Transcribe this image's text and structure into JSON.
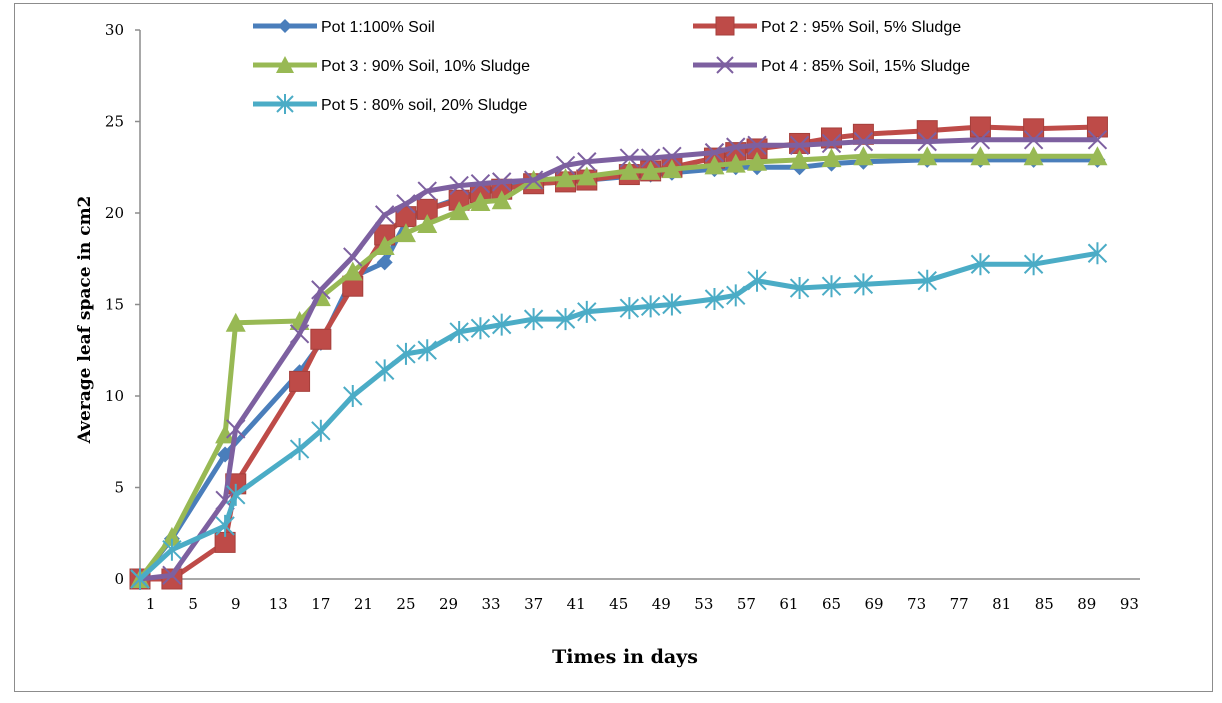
{
  "chart_data": {
    "type": "line",
    "xlabel": "Times in days",
    "ylabel": "Average leaf space in cm2",
    "ylim": [
      0,
      30
    ],
    "yticks": [
      "0",
      "5",
      "10",
      "15",
      "20",
      "25",
      "30"
    ],
    "xlim": [
      0,
      94
    ],
    "xticks": [
      "1",
      "5",
      "9",
      "13",
      "17",
      "21",
      "25",
      "29",
      "33",
      "37",
      "41",
      "45",
      "49",
      "53",
      "57",
      "61",
      "65",
      "69",
      "73",
      "77",
      "81",
      "85",
      "89",
      "93"
    ],
    "grid": false,
    "legend_position": "top",
    "series": [
      {
        "name": "Pot 1:100% Soil",
        "color": "#4a7ebb",
        "marker": "diamond",
        "x": [
          0,
          3,
          8,
          15,
          17,
          20,
          23,
          25,
          27,
          30,
          32,
          34,
          37,
          40,
          42,
          46,
          48,
          50,
          54,
          56,
          58,
          62,
          65,
          68,
          74,
          79,
          84,
          90
        ],
        "y": [
          0,
          2.2,
          6.8,
          11.3,
          12.9,
          16.5,
          17.3,
          19.5,
          20.2,
          20.8,
          21.2,
          21.4,
          21.6,
          21.7,
          21.8,
          22.0,
          22.1,
          22.2,
          22.4,
          22.5,
          22.5,
          22.5,
          22.7,
          22.8,
          22.9,
          22.9,
          22.9,
          22.9
        ]
      },
      {
        "name": "Pot 2 : 95% Soil, 5% Sludge",
        "color": "#be4b48",
        "marker": "square",
        "x": [
          0,
          3,
          8,
          9,
          15,
          17,
          20,
          23,
          25,
          27,
          30,
          32,
          34,
          37,
          40,
          42,
          46,
          48,
          50,
          54,
          56,
          58,
          62,
          65,
          68,
          74,
          79,
          84,
          90
        ],
        "y": [
          0,
          0,
          2.0,
          5.2,
          10.8,
          13.1,
          16.0,
          18.8,
          19.8,
          20.2,
          20.7,
          21.1,
          21.3,
          21.6,
          21.7,
          21.8,
          22.1,
          22.3,
          22.5,
          23.0,
          23.3,
          23.5,
          23.8,
          24.1,
          24.3,
          24.5,
          24.7,
          24.6,
          24.7
        ]
      },
      {
        "name": "Pot 3 : 90% Soil, 10% Sludge",
        "color": "#98b954",
        "marker": "triangle",
        "x": [
          0,
          3,
          8,
          9,
          15,
          17,
          20,
          23,
          25,
          27,
          30,
          32,
          34,
          37,
          40,
          42,
          46,
          48,
          50,
          54,
          56,
          58,
          62,
          65,
          68,
          74,
          79,
          84,
          90
        ],
        "y": [
          0,
          2.3,
          7.9,
          14.0,
          14.1,
          15.4,
          16.8,
          18.2,
          18.9,
          19.4,
          20.1,
          20.6,
          20.7,
          21.8,
          21.9,
          22.0,
          22.3,
          22.3,
          22.4,
          22.6,
          22.7,
          22.8,
          22.9,
          23.0,
          23.1,
          23.1,
          23.1,
          23.1,
          23.1
        ]
      },
      {
        "name": "Pot 4 : 85% Soil, 15% Sludge",
        "color": "#7d60a0",
        "marker": "x",
        "x": [
          0,
          3,
          8,
          9,
          15,
          17,
          20,
          23,
          25,
          27,
          30,
          32,
          34,
          37,
          40,
          42,
          46,
          48,
          50,
          54,
          56,
          58,
          62,
          65,
          68,
          74,
          79,
          84,
          90
        ],
        "y": [
          0,
          0.2,
          4.3,
          8.2,
          13.4,
          15.8,
          17.6,
          19.9,
          20.5,
          21.2,
          21.5,
          21.6,
          21.7,
          21.8,
          22.6,
          22.8,
          23.0,
          23.0,
          23.1,
          23.3,
          23.6,
          23.7,
          23.7,
          23.8,
          23.9,
          23.9,
          24.0,
          24.0,
          24.0
        ]
      },
      {
        "name": "Pot 5 : 80% soil, 20% Sludge",
        "color": "#4bacc6",
        "marker": "asterisk",
        "x": [
          0,
          3,
          8,
          9,
          15,
          17,
          20,
          23,
          25,
          27,
          30,
          32,
          34,
          37,
          40,
          42,
          46,
          48,
          50,
          54,
          56,
          58,
          62,
          65,
          68,
          74,
          79,
          84,
          90
        ],
        "y": [
          0,
          1.6,
          2.9,
          4.6,
          7.1,
          8.1,
          10.0,
          11.4,
          12.3,
          12.5,
          13.5,
          13.7,
          13.9,
          14.2,
          14.2,
          14.6,
          14.8,
          14.9,
          15.0,
          15.3,
          15.5,
          16.3,
          15.9,
          16.0,
          16.1,
          16.3,
          17.2,
          17.2,
          17.8
        ]
      }
    ]
  }
}
